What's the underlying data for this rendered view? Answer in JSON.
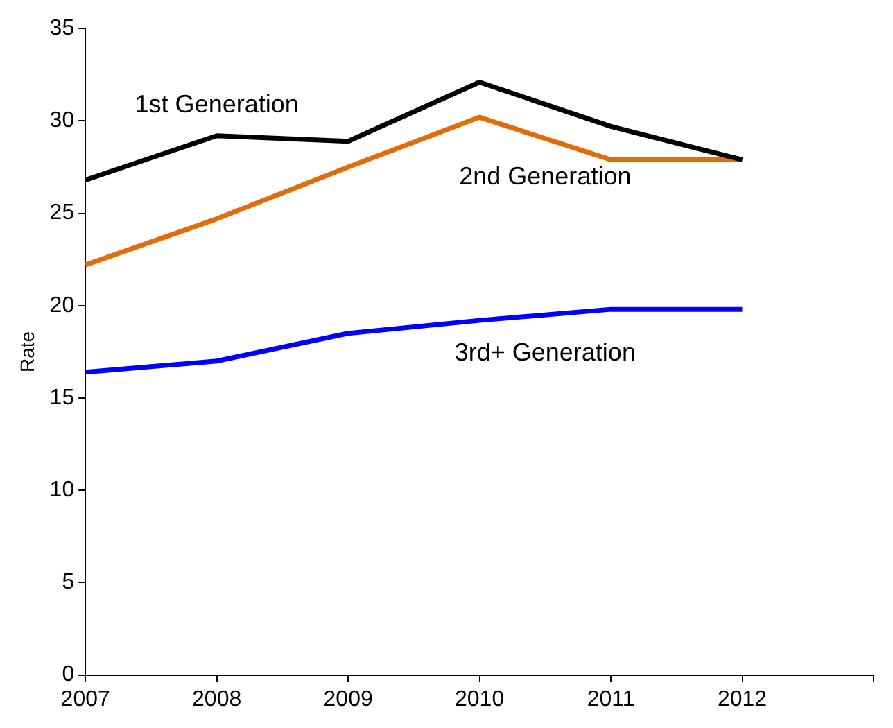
{
  "chart_data": {
    "type": "line",
    "ylabel": "Rate",
    "x": [
      2007,
      2008,
      2009,
      2010,
      2011,
      2012
    ],
    "series": [
      {
        "name": "1st Generation",
        "color": "#000000",
        "values": [
          26.8,
          29.2,
          28.9,
          32.1,
          29.7,
          27.9
        ]
      },
      {
        "name": "2nd Generation",
        "color": "#e36c0a",
        "values": [
          22.2,
          24.7,
          27.5,
          30.2,
          27.9,
          27.9
        ]
      },
      {
        "name": "3rd+ Generation",
        "color": "#0000ff",
        "values": [
          16.4,
          17.0,
          18.5,
          19.2,
          19.8,
          19.8
        ]
      }
    ],
    "xlim": [
      2007,
      2013
    ],
    "xticks": [
      2007,
      2008,
      2009,
      2010,
      2011,
      2012,
      {
        "value": 2013,
        "label": null
      }
    ],
    "ylim": [
      0,
      35
    ],
    "yticks": [
      0,
      5,
      10,
      15,
      20,
      25,
      30,
      35
    ],
    "grid": false,
    "legend": false,
    "marker": "none",
    "line_style": "solid"
  }
}
